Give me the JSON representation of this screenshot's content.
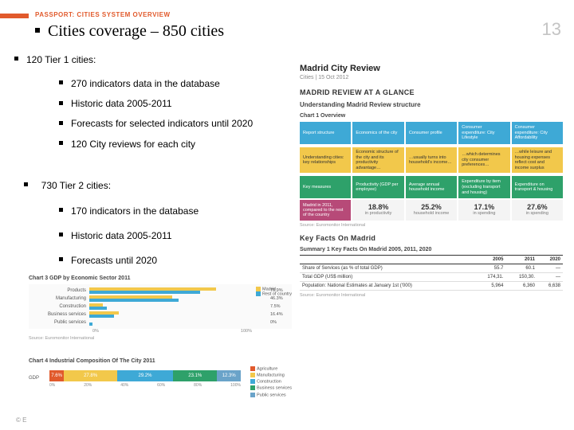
{
  "header": {
    "passport_label": "PASSPORT: CITIES SYSTEM OVERVIEW",
    "title": "Cities coverage – 850 cities",
    "page_number": "13",
    "accent_color": "#e15a2c"
  },
  "tier1": {
    "heading": "120 Tier 1 cities:",
    "items": [
      "270 indicators data in the database",
      "Historic data 2005-2011",
      "Forecasts for selected indicators until 2020",
      "120 City reviews for each city"
    ]
  },
  "tier2": {
    "heading": "730 Tier 2 cities:",
    "items": [
      "170 indicators in the database",
      "Historic data 2005-2011",
      "Forecasts until 2020"
    ]
  },
  "review": {
    "title": "Madrid City Review",
    "subtitle": "Cities | 15 Oct 2012",
    "section1": "MADRID REVIEW AT A GLANCE",
    "section2": "Understanding Madrid Review structure",
    "chart1_title": "Chart 1 Overview",
    "row1": [
      {
        "text": "Report structure",
        "cls": "ov-blue"
      },
      {
        "text": "Economics of the city",
        "cls": "ov-blue"
      },
      {
        "text": "Consumer profile",
        "cls": "ov-blue"
      },
      {
        "text": "Consumer expenditure: City Lifestyle",
        "cls": "ov-blue"
      },
      {
        "text": "Consumer expenditure: City Affordability",
        "cls": "ov-blue"
      }
    ],
    "row2": [
      {
        "text": "Understanding cities: key relationships",
        "cls": "ov-yellow"
      },
      {
        "text": "Economic structure of the city and its productivity advantage…",
        "cls": "ov-yellow"
      },
      {
        "text": "…usually turns into household's income…",
        "cls": "ov-yellow"
      },
      {
        "text": "…which determines city consumer preferences…",
        "cls": "ov-yellow"
      },
      {
        "text": "…while leisure and housing expenses reflect cost and income surplus",
        "cls": "ov-yellow"
      }
    ],
    "row3": [
      {
        "text": "Key measures",
        "cls": "ov-green"
      },
      {
        "text": "Productivity (GDP per employee)",
        "cls": "ov-green"
      },
      {
        "text": "Average annual household income",
        "cls": "ov-green"
      },
      {
        "text": "Expenditure by item (excluding transport and housing)",
        "cls": "ov-green"
      },
      {
        "text": "Expenditure on transport & housing",
        "cls": "ov-green"
      }
    ],
    "stats_label": "Madrid in 2011, compared to the rest of the country",
    "stats": [
      {
        "v": "18.8%",
        "d": "in productivity"
      },
      {
        "v": "25.2%",
        "d": "household income"
      },
      {
        "v": "17.1%",
        "d": "in spending"
      },
      {
        "v": "27.6%",
        "d": "in spending"
      }
    ],
    "source": "Source: Euromonitor International",
    "kf_title": "Key Facts On Madrid",
    "kf_subtitle": "Summary 1 Key Facts On Madrid 2005, 2011, 2020",
    "kf_table": {
      "columns": [
        "",
        "2005",
        "2011",
        "2020"
      ],
      "rows": [
        [
          "Share of Services (as % of total GDP)",
          "55.7",
          "60.1",
          "—"
        ],
        [
          "Total GDP (US$ million)",
          "174,31.",
          "150,30.",
          "—"
        ],
        [
          "Population: National Estimates at January 1st ('000)",
          "5,964",
          "6,360",
          "6,638"
        ]
      ],
      "src": "Source: Euromonitor International"
    }
  },
  "chart3": {
    "title": "Chart 3 GDP by Economic Sector 2011",
    "legend": [
      "Madrid",
      "Rest of country"
    ],
    "legend_colors": [
      "#f2c84b",
      "#3ea9d6"
    ],
    "rows": [
      {
        "label": "Products",
        "v1": 70.9,
        "v2": 62
      },
      {
        "label": "Manufacturing",
        "v1": 46.3,
        "v2": 50
      },
      {
        "label": "Construction",
        "v1": 7.5,
        "v2": 10
      },
      {
        "label": "Business services",
        "v1": 16.4,
        "v2": 14
      },
      {
        "label": "Public services",
        "v1": 0.0,
        "v2": 2
      }
    ],
    "xticks": [
      "0%",
      "100%"
    ],
    "source": "Source: Euromonitor International"
  },
  "chart4": {
    "title": "Chart 4 Industrial Composition Of The City 2011",
    "ylabel": "GDP",
    "segments": [
      {
        "v": 7.6,
        "color": "#e15a2c"
      },
      {
        "v": 27.8,
        "color": "#f2c84b"
      },
      {
        "v": 29.2,
        "color": "#3ea9d6"
      },
      {
        "v": 23.1,
        "color": "#2ea16a"
      },
      {
        "v": 12.3,
        "color": "#6aa3c9"
      }
    ],
    "legend": [
      "Agriculture",
      "Manufacturing",
      "Construction",
      "Business services",
      "Public services"
    ],
    "legend_colors": [
      "#e15a2c",
      "#f2c84b",
      "#3ea9d6",
      "#2ea16a",
      "#6aa3c9"
    ],
    "xticks": [
      "0%",
      "20%",
      "40%",
      "60%",
      "80%",
      "100%"
    ]
  },
  "copyright": "© E"
}
